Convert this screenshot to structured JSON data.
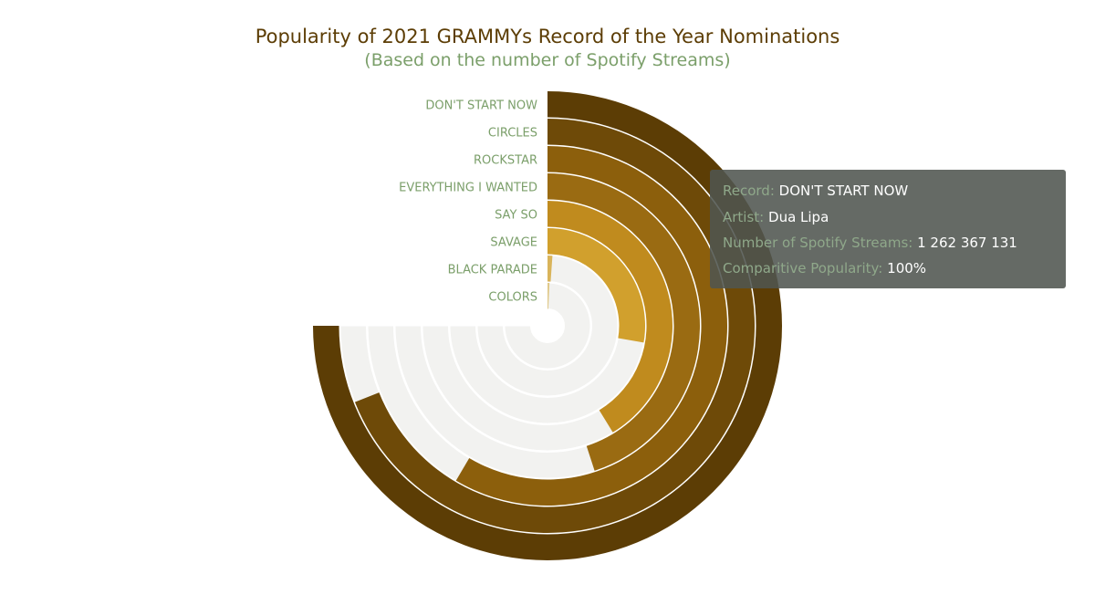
{
  "chart_data": {
    "type": "radial-bar",
    "title": "Popularity of 2021 GRAMMYs Record of the Year Nominations",
    "subtitle": "(Based on the number of Spotify Streams)",
    "categories": [
      "DON'T START NOW",
      "CIRCLES",
      "ROCKSTAR",
      "EVERYTHING I WANTED",
      "SAY SO",
      "SAVAGE",
      "BLACK PARADE",
      "COLORS"
    ],
    "values": [
      100,
      92,
      78,
      60,
      55,
      37,
      1.5,
      1
    ],
    "value_unit": "Comparitive Popularity (%)",
    "max_value": 100,
    "colors": [
      "#5c3d05",
      "#6e4a08",
      "#8c5f0c",
      "#9a6b12",
      "#c08b1e",
      "#d1a02d",
      "#d9b45a",
      "#e0c98a"
    ],
    "track_color": "#f2f2f0"
  },
  "tooltip": {
    "record_label": "Record:",
    "record_value": "DON'T START NOW",
    "artist_label": "Artist:",
    "artist_value": "Dua Lipa",
    "streams_label": "Number of Spotify Streams:",
    "streams_value": "1 262 367 131",
    "popularity_label": "Comparitive Popularity:",
    "popularity_value": "100%"
  }
}
